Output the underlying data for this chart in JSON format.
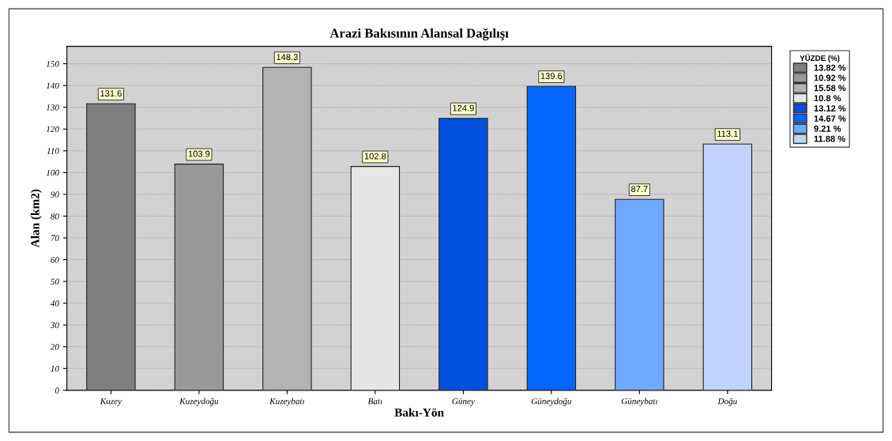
{
  "chart_data": {
    "type": "bar",
    "title": "Arazi Bakısının Alansal Dağılışı",
    "xlabel": "Bakı-Yön",
    "ylabel": "Alan (km2)",
    "legend_title": "YÜZDE (%)",
    "legend": "right",
    "categories": [
      "Kuzey",
      "Kuzeydoğu",
      "Kuzeybatı",
      "Batı",
      "Güney",
      "Güneydoğu",
      "Güneybatı",
      "Doğu"
    ],
    "series": [
      {
        "name": "13.82 %",
        "color": "#7f7f7f",
        "values": [
          131.6,
          null,
          null,
          null,
          null,
          null,
          null,
          null
        ]
      },
      {
        "name": "10.92 %",
        "color": "#999999",
        "values": [
          null,
          103.9,
          null,
          null,
          null,
          null,
          null,
          null
        ]
      },
      {
        "name": "15.58 %",
        "color": "#b3b3b3",
        "values": [
          null,
          null,
          148.3,
          null,
          null,
          null,
          null,
          null
        ]
      },
      {
        "name": "10.8 %",
        "color": "#e6e6e6",
        "values": [
          null,
          null,
          null,
          102.8,
          null,
          null,
          null,
          null
        ]
      },
      {
        "name": "13.12 %",
        "color": "#0050dc",
        "values": [
          null,
          null,
          null,
          null,
          124.9,
          null,
          null,
          null
        ]
      },
      {
        "name": "14.67 %",
        "color": "#0066ff",
        "values": [
          null,
          null,
          null,
          null,
          null,
          139.6,
          null,
          null
        ]
      },
      {
        "name": "9.21 %",
        "color": "#6fa8ff",
        "values": [
          null,
          null,
          null,
          null,
          null,
          null,
          87.7,
          null
        ]
      },
      {
        "name": "11.88 %",
        "color": "#c2d3ff",
        "values": [
          null,
          null,
          null,
          null,
          null,
          null,
          null,
          113.1
        ]
      }
    ],
    "data_labels": true,
    "grid": "y",
    "ylim": [
      0,
      158
    ],
    "yticks": [
      0,
      10,
      20,
      30,
      40,
      50,
      60,
      70,
      80,
      90,
      100,
      110,
      120,
      130,
      140,
      150
    ]
  }
}
